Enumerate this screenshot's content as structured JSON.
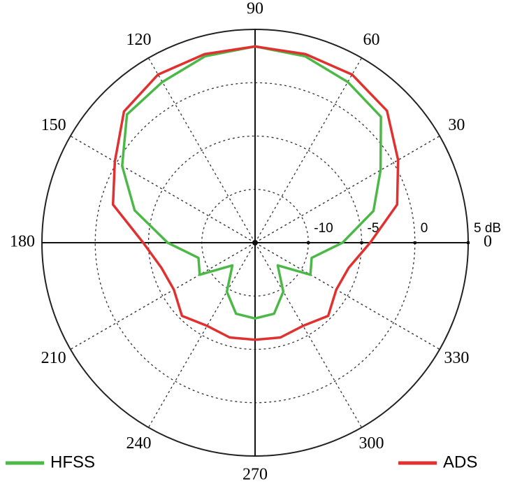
{
  "chart_data": {
    "type": "polar",
    "theta": [
      0,
      15,
      30,
      45,
      60,
      75,
      90,
      105,
      120,
      135,
      150,
      165,
      180,
      195,
      210,
      225,
      240,
      255,
      270,
      285,
      300,
      315,
      330,
      345
    ],
    "thetaticks": [
      0,
      30,
      60,
      90,
      120,
      150,
      180,
      210,
      240,
      270,
      300,
      330
    ],
    "rlim": [
      -15,
      5
    ],
    "rticks": [
      -10,
      -5,
      0,
      {
        "value": 5,
        "label": "5 dB"
      }
    ],
    "legend": "bottom",
    "series": [
      {
        "name": "HFSS",
        "color": "#4cb848",
        "values": [
          -6.8,
          -3.5,
          -1.4,
          1.7,
          2.4,
          3.1,
          3.4,
          3.1,
          2.4,
          2.0,
          -0.6,
          -3.3,
          -6.8,
          -9.5,
          -9.0,
          -12,
          -9.7,
          -8.1,
          -7.9,
          -8.1,
          -9.7,
          -12,
          -9.0,
          -9.5
        ]
      },
      {
        "name": "ADS",
        "color": "#e03030",
        "values": [
          -4.2,
          -1.2,
          0.5,
          2.5,
          3.2,
          3.3,
          3.4,
          3.3,
          3.2,
          2.4,
          0.2,
          -1.2,
          -4.5,
          -5.9,
          -6.2,
          -5.3,
          -6.0,
          -5.8,
          -5.9,
          -5.8,
          -6.0,
          -5.3,
          -6.2,
          -5.9
        ]
      }
    ]
  }
}
